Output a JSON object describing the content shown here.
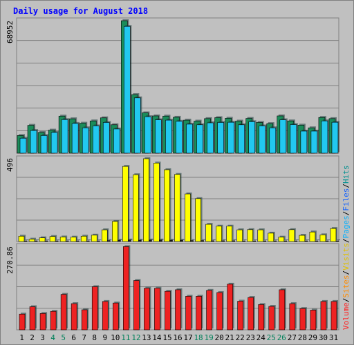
{
  "chart_data": {
    "type": "bar",
    "title": "Daily usage for August 2018",
    "categories": [
      "1",
      "2",
      "3",
      "4",
      "5",
      "6",
      "7",
      "8",
      "9",
      "10",
      "11",
      "12",
      "13",
      "14",
      "15",
      "16",
      "17",
      "18",
      "19",
      "20",
      "21",
      "22",
      "23",
      "24",
      "25",
      "26",
      "27",
      "28",
      "29",
      "30",
      "31"
    ],
    "weekend_days": [
      "4",
      "5",
      "11",
      "12",
      "18",
      "19",
      "25",
      "26"
    ],
    "panels": [
      {
        "id": "top",
        "ymax_label": "68952",
        "ymax": 68952,
        "series": [
          {
            "name": "Hits",
            "color": "#1a8c5a",
            "values": [
              9200,
              14500,
              10800,
              12000,
              19300,
              17900,
              15600,
              16800,
              18400,
              14800,
              68952,
              30500,
              21000,
              19400,
              19300,
              18700,
              17200,
              16700,
              18000,
              18500,
              18200,
              16700,
              18100,
              16000,
              15400,
              19400,
              16800,
              14600,
              13200,
              18600,
              18000
            ]
          },
          {
            "name": "Files",
            "color": "#22c8f0",
            "values": [
              7800,
              11800,
              9200,
              10800,
              17500,
              15500,
              13200,
              14200,
              16000,
              12600,
              66000,
              28800,
              19000,
              17400,
              17200,
              16600,
              15100,
              14800,
              15800,
              16000,
              16100,
              14800,
              16400,
              14200,
              13200,
              17400,
              14900,
              11500,
              11500,
              16800,
              16100
            ]
          }
        ]
      },
      {
        "id": "middle",
        "ymax_label": "496",
        "ymax": 496,
        "series": [
          {
            "name": "Pages",
            "color": "#ffff00",
            "values": [
              32,
              14,
              22,
              30,
              27,
              26,
              32,
              38,
              70,
              120,
              450,
              400,
              496,
              470,
              430,
              402,
              285,
              257,
              103,
              92,
              92,
              70,
              71,
              70,
              50,
              26,
              71,
              37,
              57,
              40,
              78
            ]
          },
          {
            "name": "Visits",
            "color": "#222222",
            "values": [
              3,
              2,
              2,
              3,
              3,
              3,
              3,
              4,
              6,
              8,
              9,
              8,
              9,
              9,
              8,
              8,
              6,
              6,
              5,
              5,
              5,
              4,
              4,
              4,
              3,
              2,
              4,
              3,
              3,
              3,
              4
            ]
          }
        ]
      },
      {
        "id": "bottom",
        "ymax_label": "270.86",
        "ymax": 270.86,
        "series": [
          {
            "name": "Volume",
            "color": "#ee2222",
            "values": [
              51,
              75,
              53,
              60,
              115,
              85,
              65,
              140,
              92,
              87,
              270,
              160,
              135,
              135,
              125,
              130,
              109,
              109,
              128,
              121,
              148,
              93,
              105,
              82,
              76,
              130,
              85,
              69,
              64,
              92,
              92
            ]
          }
        ]
      }
    ],
    "right_legend": [
      {
        "text": "Volume",
        "color": "#ff2020"
      },
      {
        "text": "/",
        "color": "#000000"
      },
      {
        "text": "Sites",
        "color": "#ff8c00"
      },
      {
        "text": "/",
        "color": "#000000"
      },
      {
        "text": "Visits",
        "color": "#e0c000"
      },
      {
        "text": "/",
        "color": "#000000"
      },
      {
        "text": "Pages",
        "color": "#00b0ff"
      },
      {
        "text": "/",
        "color": "#000000"
      },
      {
        "text": "Files",
        "color": "#1060ff"
      },
      {
        "text": "/",
        "color": "#000000"
      },
      {
        "text": "Hits",
        "color": "#009090"
      }
    ],
    "colors": {
      "background": "#c0c0c0",
      "grid": "#808080",
      "weekday_label": "#000000",
      "weekend_label": "#00805a"
    }
  }
}
